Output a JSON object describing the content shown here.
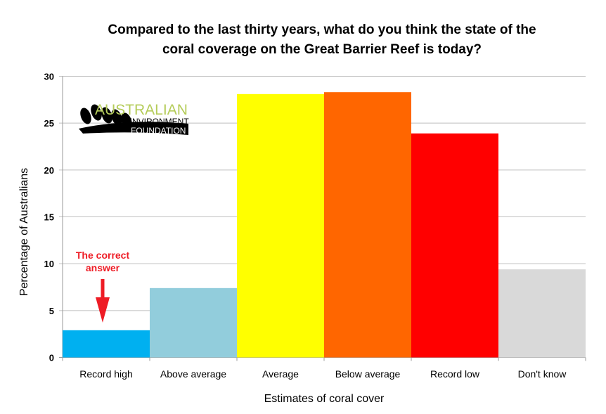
{
  "chart_data": {
    "type": "bar",
    "title_lines": [
      "Compared to the last thirty years, what do you think the state of the",
      "coral coverage on the Great Barrier Reef is today?"
    ],
    "xlabel": "Estimates of coral cover",
    "ylabel": "Percentage of Australians",
    "categories": [
      "Record high",
      "Above average",
      "Average",
      "Below average",
      "Record low",
      "Don't know"
    ],
    "values": [
      2.9,
      7.4,
      28.1,
      28.3,
      23.9,
      9.4
    ],
    "colors": [
      "#00b0f0",
      "#92cddc",
      "#ffff00",
      "#ff6600",
      "#ff0000",
      "#d9d9d9"
    ],
    "ylim": [
      0,
      30
    ],
    "yticks": [
      0,
      5,
      10,
      15,
      20,
      25,
      30
    ],
    "grid": true,
    "legend": "none",
    "annotation": {
      "lines": [
        "The correct",
        "answer"
      ],
      "target": "Record high",
      "color": "#ee1c25"
    },
    "logo": {
      "lines": [
        "AUSTRALIAN",
        "ENVIRONMENT",
        "FOUNDATION"
      ],
      "accent": "#b5cc5a"
    }
  }
}
